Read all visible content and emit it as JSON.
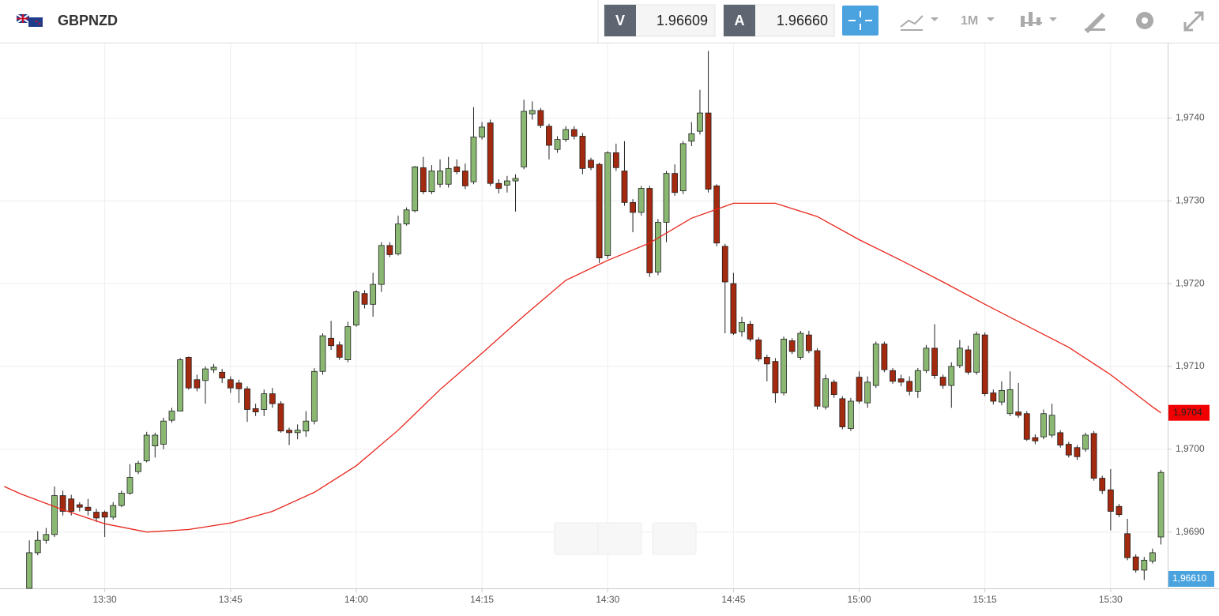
{
  "header": {
    "symbol": "GBPNZD",
    "bid_label": "V",
    "bid": "1.96609",
    "ask_label": "A",
    "ask": "1.96660",
    "timeframe": "1M"
  },
  "chart_data": {
    "type": "candlestick",
    "x": [
      "13:21",
      "13:22",
      "13:23",
      "13:24",
      "13:25",
      "13:26",
      "13:27",
      "13:28",
      "13:29",
      "13:30",
      "13:31",
      "13:32",
      "13:33",
      "13:34",
      "13:35",
      "13:36",
      "13:37",
      "13:38",
      "13:39",
      "13:40",
      "13:41",
      "13:42",
      "13:43",
      "13:44",
      "13:45",
      "13:46",
      "13:47",
      "13:48",
      "13:49",
      "13:50",
      "13:51",
      "13:52",
      "13:53",
      "13:54",
      "13:55",
      "13:56",
      "13:57",
      "13:58",
      "13:59",
      "14:00",
      "14:01",
      "14:02",
      "14:03",
      "14:04",
      "14:05",
      "14:06",
      "14:07",
      "14:08",
      "14:09",
      "14:10",
      "14:11",
      "14:12",
      "14:13",
      "14:14",
      "14:15",
      "14:16",
      "14:17",
      "14:18",
      "14:19",
      "14:20",
      "14:21",
      "14:22",
      "14:23",
      "14:24",
      "14:25",
      "14:26",
      "14:27",
      "14:28",
      "14:29",
      "14:30",
      "14:31",
      "14:32",
      "14:33",
      "14:34",
      "14:35",
      "14:36",
      "14:37",
      "14:38",
      "14:39",
      "14:40",
      "14:41",
      "14:42",
      "14:43",
      "14:44",
      "14:45",
      "14:46",
      "14:47",
      "14:48",
      "14:49",
      "14:50",
      "14:51",
      "14:52",
      "14:53",
      "14:54",
      "14:55",
      "14:56",
      "14:57",
      "14:58",
      "14:59",
      "15:00",
      "15:01",
      "15:02",
      "15:03",
      "15:04",
      "15:05",
      "15:06",
      "15:07",
      "15:08",
      "15:09",
      "15:10",
      "15:11",
      "15:12",
      "15:13",
      "15:14",
      "15:15",
      "15:16",
      "15:17",
      "15:18",
      "15:19",
      "15:20",
      "15:21",
      "15:22",
      "15:23",
      "15:24",
      "15:25",
      "15:26",
      "15:27",
      "15:28",
      "15:29",
      "15:30",
      "15:31",
      "15:32",
      "15:33",
      "15:34",
      "15:35",
      "15:36"
    ],
    "open": [
      1.96832,
      1.96875,
      1.9689,
      1.96897,
      1.96944,
      1.9694,
      1.96933,
      1.9693,
      1.96924,
      1.96924,
      1.96918,
      1.96932,
      1.96947,
      1.96973,
      1.96986,
      1.97004,
      1.97006,
      1.97035,
      1.97046,
      1.97111,
      1.97084,
      1.97083,
      1.97096,
      1.97093,
      1.97084,
      1.9708,
      1.97073,
      1.97049,
      1.97048,
      1.97067,
      1.97055,
      1.97023,
      1.9702,
      1.97022,
      1.97034,
      1.97094,
      1.97134,
      1.97126,
      1.97108,
      1.9715,
      1.97188,
      1.97175,
      1.97199,
      1.97246,
      1.97236,
      1.97272,
      1.97288,
      1.9734,
      1.97311,
      1.9732,
      1.9732,
      1.97341,
      1.97336,
      1.97323,
      1.97377,
      1.97394,
      1.97321,
      1.97319,
      1.97324,
      1.97341,
      1.97405,
      1.97409,
      1.9739,
      1.97362,
      1.97374,
      1.97386,
      1.97378,
      1.97349,
      1.97344,
      1.97234,
      1.97358,
      1.97336,
      1.97298,
      1.97286,
      1.97315,
      1.97214,
      1.97274,
      1.97333,
      1.97312,
      1.97372,
      1.97384,
      1.97406,
      1.97318,
      1.97245,
      1.972,
      1.97142,
      1.97151,
      1.97132,
      1.97111,
      1.97106,
      1.97068,
      1.97131,
      1.97111,
      1.97138,
      1.97119,
      1.97051,
      1.97081,
      1.97061,
      1.97025,
      1.97087,
      1.97056,
      1.97077,
      1.97127,
      1.97095,
      1.97085,
      1.97082,
      1.9707,
      1.97095,
      1.97122,
      1.97087,
      1.97077,
      1.97101,
      1.9712,
      1.97093,
      1.97138,
      1.97068,
      1.97057,
      1.97043,
      1.97045,
      1.97043,
      1.97014,
      1.97015,
      1.97017,
      1.9702,
      1.97006,
      1.97002,
      1.97,
      1.97019,
      1.96965,
      1.96951,
      1.96931,
      1.96898,
      1.9687,
      1.96854,
      1.96865,
      1.96894
    ],
    "high": [
      1.9689,
      1.96901,
      1.96905,
      1.96955,
      1.9695,
      1.96945,
      1.96936,
      1.9694,
      1.96928,
      1.96926,
      1.96936,
      1.9695,
      1.96982,
      1.96986,
      1.97021,
      1.9702,
      1.97038,
      1.9705,
      1.9711,
      1.97112,
      1.9709,
      1.971,
      1.97103,
      1.97097,
      1.97088,
      1.97084,
      1.97076,
      1.97055,
      1.97072,
      1.97074,
      1.97058,
      1.97026,
      1.9703,
      1.97046,
      1.97098,
      1.9714,
      1.97155,
      1.9713,
      1.97154,
      1.97192,
      1.97192,
      1.97213,
      1.9725,
      1.9725,
      1.97282,
      1.97292,
      1.97342,
      1.97353,
      1.97343,
      1.9735,
      1.97353,
      1.9735,
      1.97345,
      1.97413,
      1.97395,
      1.97398,
      1.97326,
      1.9733,
      1.97332,
      1.97422,
      1.9742,
      1.97412,
      1.97393,
      1.97378,
      1.9739,
      1.9739,
      1.97382,
      1.97352,
      1.97346,
      1.9736,
      1.97369,
      1.97372,
      1.97302,
      1.97318,
      1.97318,
      1.97278,
      1.97336,
      1.97344,
      1.97372,
      1.97395,
      1.97434,
      1.97481,
      1.9732,
      1.97248,
      1.97213,
      1.9716,
      1.97155,
      1.97135,
      1.97114,
      1.9711,
      1.97136,
      1.97134,
      1.97143,
      1.97143,
      1.97122,
      1.9709,
      1.97084,
      1.97064,
      1.97062,
      1.97094,
      1.97088,
      1.9713,
      1.9713,
      1.97098,
      1.9709,
      1.97088,
      1.97098,
      1.97126,
      1.97151,
      1.9709,
      1.97105,
      1.97132,
      1.97125,
      1.97142,
      1.97141,
      1.97072,
      1.97082,
      1.97094,
      1.9708,
      1.97046,
      1.97018,
      1.97048,
      1.97055,
      1.97023,
      1.97009,
      1.97005,
      1.9702,
      1.97022,
      1.96968,
      1.96976,
      1.96934,
      1.96916,
      1.96873,
      1.9687,
      1.9688,
      1.96975
    ],
    "low": [
      1.96832,
      1.96872,
      1.96886,
      1.96894,
      1.9692,
      1.9692,
      1.96925,
      1.9692,
      1.96912,
      1.96894,
      1.96915,
      1.9693,
      1.96945,
      1.9697,
      1.96984,
      1.9699,
      1.97,
      1.97032,
      1.97046,
      1.97072,
      1.9707,
      1.97055,
      1.97092,
      1.9708,
      1.97068,
      1.97056,
      1.97033,
      1.9704,
      1.9704,
      1.9705,
      1.9702,
      1.97005,
      1.97012,
      1.97015,
      1.9703,
      1.9709,
      1.9712,
      1.97108,
      1.97105,
      1.97148,
      1.9717,
      1.9716,
      1.9719,
      1.97232,
      1.97234,
      1.9727,
      1.97286,
      1.97308,
      1.97308,
      1.97316,
      1.97316,
      1.97332,
      1.97314,
      1.9732,
      1.97374,
      1.97318,
      1.97309,
      1.9731,
      1.97287,
      1.97338,
      1.97398,
      1.97388,
      1.9735,
      1.97358,
      1.97371,
      1.97374,
      1.97332,
      1.97337,
      1.97225,
      1.9723,
      1.97336,
      1.97294,
      1.97262,
      1.97282,
      1.97208,
      1.9721,
      1.9725,
      1.97306,
      1.97308,
      1.97366,
      1.9738,
      1.9731,
      1.97245,
      1.9714,
      1.97138,
      1.97136,
      1.9713,
      1.97106,
      1.97082,
      1.97056,
      1.97065,
      1.97115,
      1.97108,
      1.97116,
      1.97048,
      1.97048,
      1.97062,
      1.97024,
      1.97022,
      1.97055,
      1.9705,
      1.97074,
      1.97093,
      1.97079,
      1.97076,
      1.97065,
      1.97062,
      1.97092,
      1.97085,
      1.97073,
      1.9705,
      1.97098,
      1.9709,
      1.9709,
      1.97064,
      1.97054,
      1.97053,
      1.9704,
      1.97038,
      1.9701,
      1.97006,
      1.97012,
      1.97014,
      1.97002,
      1.9699,
      1.96987,
      1.96997,
      1.96962,
      1.96946,
      1.96902,
      1.96918,
      1.96866,
      1.96851,
      1.96842,
      1.96862,
      1.96885
    ],
    "close": [
      1.96875,
      1.9689,
      1.96897,
      1.96944,
      1.96925,
      1.96925,
      1.9693,
      1.96926,
      1.96917,
      1.96918,
      1.96932,
      1.96947,
      1.96966,
      1.96983,
      1.97017,
      1.97017,
      1.97034,
      1.97046,
      1.97108,
      1.97074,
      1.97074,
      1.97097,
      1.97099,
      1.97086,
      1.97074,
      1.97073,
      1.97048,
      1.97045,
      1.97067,
      1.97055,
      1.97022,
      1.9702,
      1.97023,
      1.97034,
      1.97094,
      1.97137,
      1.97125,
      1.97111,
      1.97148,
      1.9719,
      1.97175,
      1.97199,
      1.97246,
      1.97235,
      1.97272,
      1.97289,
      1.97341,
      1.97311,
      1.97336,
      1.97336,
      1.97339,
      1.97335,
      1.97318,
      1.97377,
      1.97389,
      1.97321,
      1.97315,
      1.97324,
      1.97327,
      1.97408,
      1.97409,
      1.97391,
      1.97367,
      1.97374,
      1.97386,
      1.97378,
      1.97339,
      1.9734,
      1.97231,
      1.97358,
      1.9734,
      1.97298,
      1.97286,
      1.97315,
      1.97213,
      1.97274,
      1.97333,
      1.9731,
      1.97369,
      1.97381,
      1.97406,
      1.97314,
      1.97249,
      1.97202,
      1.9714,
      1.97153,
      1.97133,
      1.97109,
      1.97103,
      1.97068,
      1.97133,
      1.97118,
      1.9714,
      1.97119,
      1.97052,
      1.97085,
      1.97066,
      1.97027,
      1.97058,
      1.97058,
      1.97081,
      1.97127,
      1.97096,
      1.97082,
      1.97081,
      1.9707,
      1.97095,
      1.97122,
      1.97089,
      1.97077,
      1.971,
      1.97122,
      1.97093,
      1.97139,
      1.97067,
      1.97058,
      1.97071,
      1.97072,
      1.97041,
      1.97012,
      1.9701,
      1.97043,
      1.97041,
      1.97005,
      1.96993,
      1.96991,
      1.97017,
      1.96965,
      1.9695,
      1.96925,
      1.96921,
      1.96869,
      1.96854,
      1.96866,
      1.96875,
      1.96972
    ],
    "up_color": "#8ab872",
    "down_color": "#a3290f",
    "overlay": {
      "x": [
        "13:18",
        "13:20",
        "13:25",
        "13:30",
        "13:35",
        "13:40",
        "13:45",
        "13:50",
        "13:55",
        "14:00",
        "14:05",
        "14:10",
        "14:15",
        "14:20",
        "14:25",
        "14:30",
        "14:35",
        "14:40",
        "14:45",
        "14:50",
        "14:55",
        "15:00",
        "15:05",
        "15:10",
        "15:15",
        "15:20",
        "15:25",
        "15:30",
        "15:35",
        "15:36"
      ],
      "values": [
        1.96955,
        1.96946,
        1.96927,
        1.9691,
        1.969,
        1.96903,
        1.96911,
        1.96925,
        1.96948,
        1.9698,
        1.97023,
        1.97072,
        1.97116,
        1.97161,
        1.97204,
        1.97228,
        1.97249,
        1.97279,
        1.97297,
        1.97297,
        1.97281,
        1.97253,
        1.97228,
        1.97202,
        1.97175,
        1.97149,
        1.97123,
        1.9709,
        1.97051,
        1.97044
      ],
      "color": "#e8261c",
      "value_label": "1,9704"
    },
    "price_label": "1,96610",
    "price_color": "#4aa3df",
    "xlim": [
      "13:17:30",
      "15:36:48"
    ],
    "xticks": [
      "13:30",
      "13:45",
      "14:00",
      "14:15",
      "14:30",
      "14:45",
      "15:00",
      "15:15",
      "15:30"
    ],
    "ylim": [
      1.96832,
      1.9749
    ],
    "yticks": [
      {
        "value": 1.969,
        "label": "1,9690"
      },
      {
        "value": 1.97,
        "label": "1,9700"
      },
      {
        "value": 1.971,
        "label": "1,9710"
      },
      {
        "value": 1.972,
        "label": "1,9720"
      },
      {
        "value": 1.973,
        "label": "1,9730"
      },
      {
        "value": 1.974,
        "label": "1,9740"
      }
    ],
    "grid": true
  }
}
